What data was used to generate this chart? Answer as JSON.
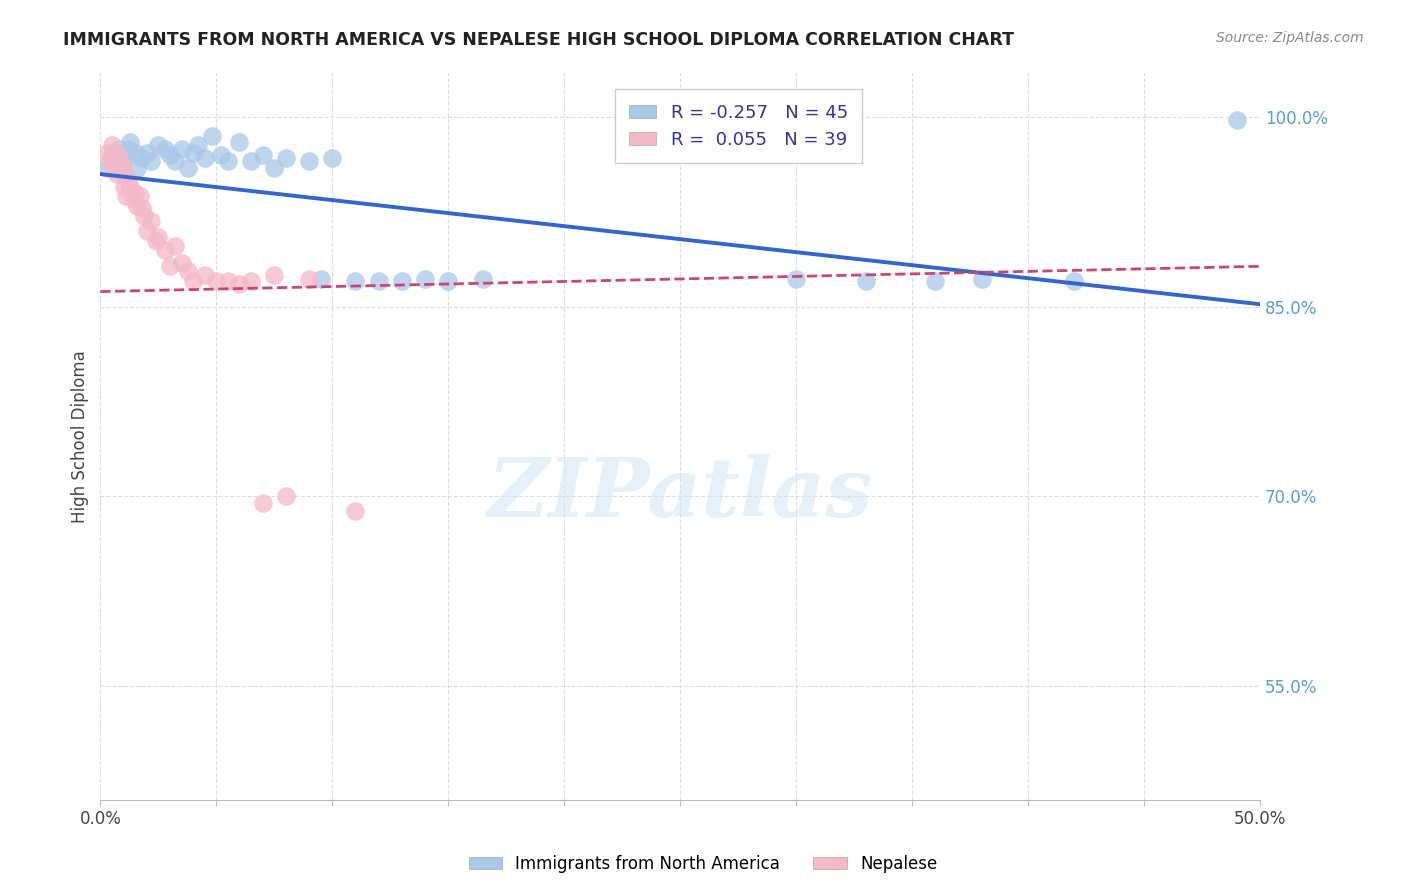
{
  "title": "IMMIGRANTS FROM NORTH AMERICA VS NEPALESE HIGH SCHOOL DIPLOMA CORRELATION CHART",
  "source": "Source: ZipAtlas.com",
  "ylabel": "High School Diploma",
  "xlim": [
    0.0,
    0.5
  ],
  "ylim": [
    0.46,
    1.035
  ],
  "xticks": [
    0.0,
    0.05,
    0.1,
    0.15,
    0.2,
    0.25,
    0.3,
    0.35,
    0.4,
    0.45,
    0.5
  ],
  "xticklabels": [
    "0.0%",
    "",
    "",
    "",
    "",
    "",
    "",
    "",
    "",
    "",
    "50.0%"
  ],
  "ytick_positions": [
    0.55,
    0.7,
    0.85,
    1.0
  ],
  "ytick_labels_right": [
    "55.0%",
    "70.0%",
    "85.0%",
    "100.0%"
  ],
  "blue_R": -0.257,
  "blue_N": 45,
  "pink_R": 0.055,
  "pink_N": 39,
  "blue_color": "#a8c8e8",
  "pink_color": "#f4b8c8",
  "blue_line_color": "#3366cc",
  "pink_line_color": "#cc4477",
  "watermark_text": "ZIPatlas",
  "blue_points_x": [
    0.003,
    0.005,
    0.006,
    0.008,
    0.01,
    0.01,
    0.012,
    0.013,
    0.015,
    0.016,
    0.018,
    0.02,
    0.022,
    0.025,
    0.028,
    0.03,
    0.032,
    0.035,
    0.038,
    0.04,
    0.042,
    0.045,
    0.048,
    0.052,
    0.055,
    0.06,
    0.065,
    0.07,
    0.075,
    0.08,
    0.09,
    0.095,
    0.1,
    0.11,
    0.12,
    0.13,
    0.14,
    0.15,
    0.165,
    0.3,
    0.33,
    0.36,
    0.38,
    0.42,
    0.49
  ],
  "blue_points_y": [
    0.96,
    0.97,
    0.965,
    0.975,
    0.968,
    0.955,
    0.975,
    0.98,
    0.972,
    0.96,
    0.968,
    0.972,
    0.965,
    0.978,
    0.975,
    0.97,
    0.965,
    0.975,
    0.96,
    0.972,
    0.978,
    0.968,
    0.985,
    0.97,
    0.965,
    0.98,
    0.965,
    0.97,
    0.96,
    0.968,
    0.965,
    0.872,
    0.968,
    0.87,
    0.87,
    0.87,
    0.872,
    0.87,
    0.872,
    0.872,
    0.87,
    0.87,
    0.872,
    0.87,
    0.998
  ],
  "pink_points_x": [
    0.003,
    0.004,
    0.005,
    0.005,
    0.006,
    0.007,
    0.008,
    0.009,
    0.01,
    0.01,
    0.011,
    0.012,
    0.013,
    0.014,
    0.015,
    0.016,
    0.017,
    0.018,
    0.019,
    0.02,
    0.022,
    0.024,
    0.025,
    0.028,
    0.03,
    0.032,
    0.035,
    0.038,
    0.04,
    0.045,
    0.05,
    0.055,
    0.06,
    0.065,
    0.07,
    0.075,
    0.08,
    0.09,
    0.11
  ],
  "pink_points_y": [
    0.972,
    0.965,
    0.96,
    0.978,
    0.968,
    0.955,
    0.97,
    0.962,
    0.958,
    0.945,
    0.938,
    0.95,
    0.945,
    0.935,
    0.94,
    0.93,
    0.938,
    0.928,
    0.922,
    0.91,
    0.918,
    0.902,
    0.905,
    0.895,
    0.882,
    0.898,
    0.885,
    0.878,
    0.87,
    0.875,
    0.87,
    0.87,
    0.868,
    0.87,
    0.695,
    0.875,
    0.7,
    0.872,
    0.688
  ],
  "blue_trend_x0": 0.0,
  "blue_trend_y0": 0.955,
  "blue_trend_x1": 0.5,
  "blue_trend_y1": 0.852,
  "pink_trend_x0": 0.0,
  "pink_trend_y0": 0.862,
  "pink_trend_x1": 0.5,
  "pink_trend_y1": 0.882
}
